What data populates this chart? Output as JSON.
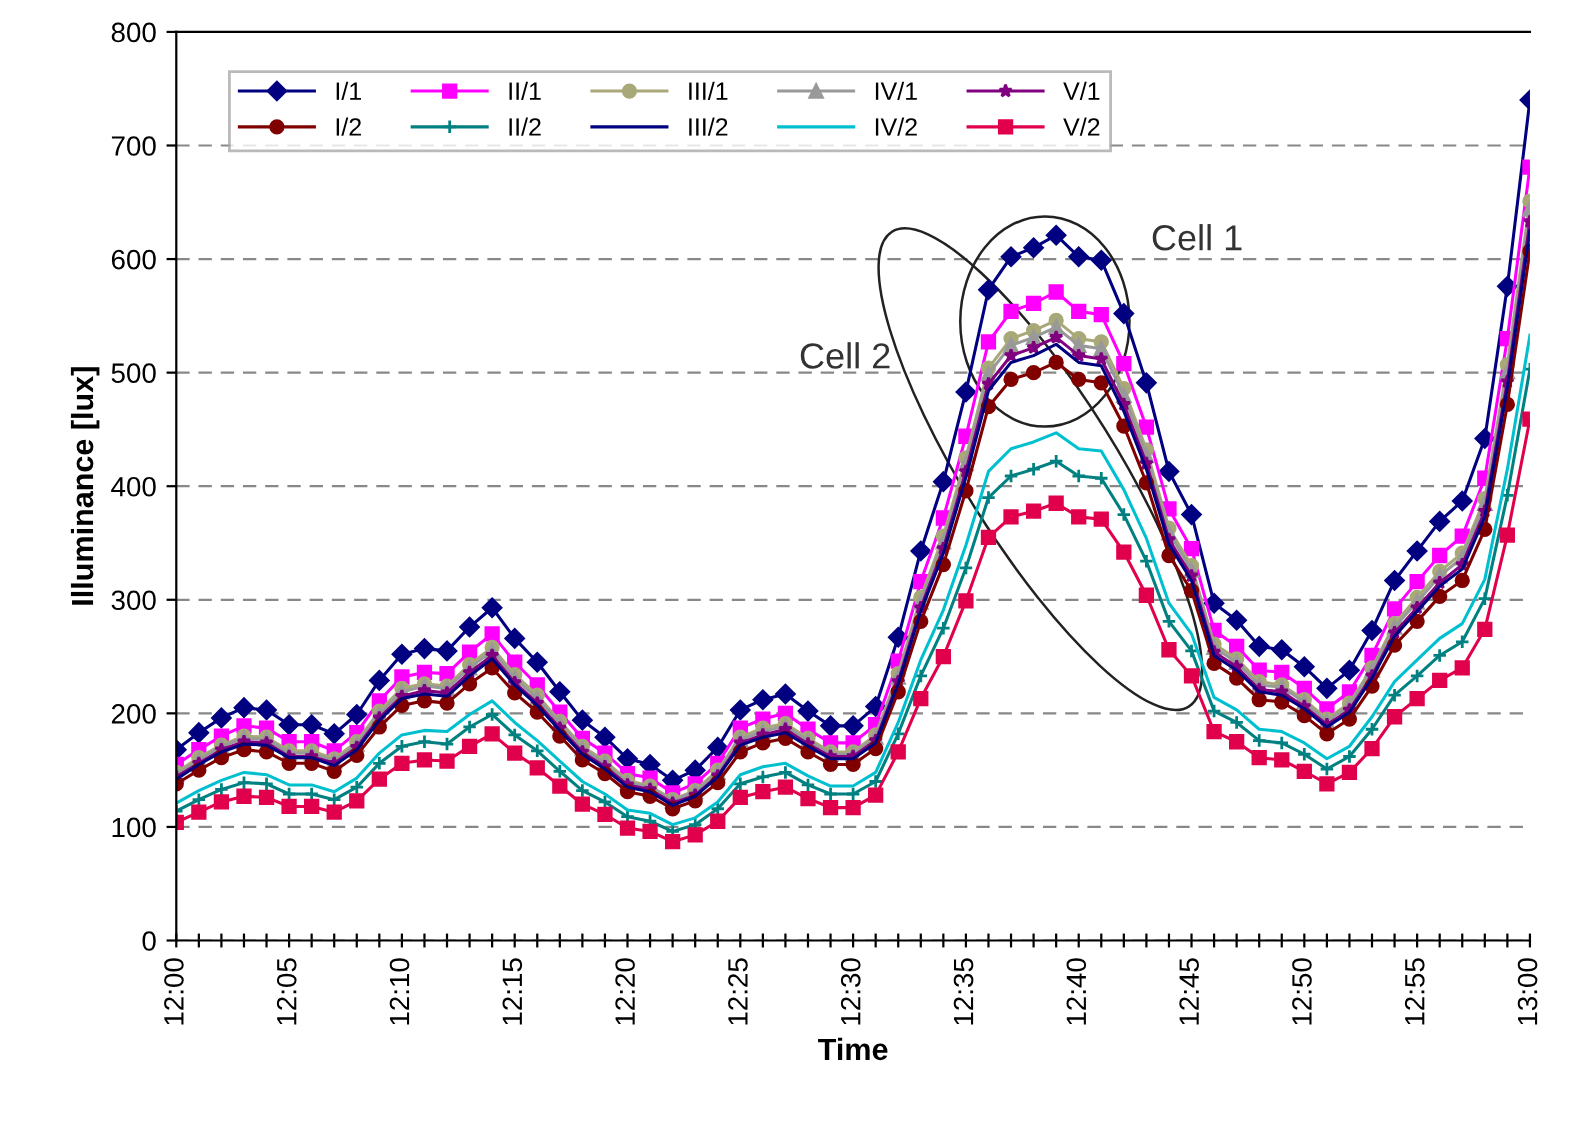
{
  "chart_data": {
    "type": "line",
    "xlabel": "Time",
    "ylabel": "Illuminance [lux]",
    "categories": [
      "12:00",
      null,
      null,
      null,
      null,
      "12:05",
      null,
      null,
      null,
      null,
      "12:10",
      null,
      null,
      null,
      null,
      "12:15",
      null,
      null,
      null,
      null,
      "12:20",
      null,
      null,
      null,
      null,
      "12:25",
      null,
      null,
      null,
      null,
      "12:30",
      null,
      null,
      null,
      null,
      "12:35",
      null,
      null,
      null,
      null,
      "12:40",
      null,
      null,
      null,
      null,
      "12:45",
      null,
      null,
      null,
      null,
      "12:50",
      null,
      null,
      null,
      null,
      "12:55",
      null,
      null,
      null,
      null,
      "13:00"
    ],
    "ylim": [
      0,
      800
    ],
    "yticks": [
      0,
      100,
      200,
      300,
      400,
      500,
      600,
      700,
      800
    ],
    "grid": "y",
    "legend": "top left",
    "line_style": "solid",
    "annotations": [
      "Cell 1",
      "Cell 2"
    ],
    "series": [
      {
        "name": "I/1",
        "color": "#000080",
        "marker": "diamond",
        "values": [
          168,
          183,
          196,
          205,
          203,
          190,
          190,
          182,
          199,
          229,
          252,
          257,
          255,
          276,
          293,
          266,
          245,
          219,
          194,
          179,
          160,
          155,
          141,
          150,
          170,
          203,
          212,
          217,
          202,
          189,
          189,
          206,
          267,
          343,
          404,
          483,
          573,
          602,
          610,
          621,
          602,
          599,
          552,
          491,
          413,
          375,
          297,
          282,
          259,
          256,
          241,
          222,
          238,
          273,
          317,
          343,
          369,
          387,
          442,
          576,
          740
        ]
      },
      {
        "name": "II/1",
        "color": "#ff00ff",
        "marker": "square",
        "values": [
          155,
          168,
          180,
          189,
          187,
          175,
          175,
          167,
          183,
          211,
          232,
          236,
          235,
          254,
          270,
          245,
          225,
          201,
          178,
          165,
          147,
          143,
          130,
          138,
          156,
          187,
          195,
          200,
          186,
          174,
          174,
          190,
          246,
          316,
          372,
          444,
          527,
          554,
          561,
          571,
          554,
          551,
          508,
          452,
          380,
          345,
          273,
          259,
          238,
          236,
          222,
          204,
          219,
          251,
          292,
          316,
          339,
          356,
          407,
          530,
          681
        ]
      },
      {
        "name": "III/1",
        "color": "#a8a878",
        "marker": "circle",
        "values": [
          148,
          161,
          172,
          180,
          179,
          167,
          167,
          160,
          175,
          202,
          222,
          226,
          224,
          243,
          258,
          234,
          216,
          193,
          171,
          158,
          141,
          136,
          124,
          132,
          150,
          179,
          187,
          191,
          178,
          166,
          166,
          181,
          235,
          302,
          356,
          425,
          504,
          530,
          537,
          546,
          530,
          527,
          486,
          432,
          363,
          330,
          261,
          248,
          228,
          225,
          212,
          195,
          209,
          240,
          279,
          302,
          325,
          341,
          389,
          507,
          651
        ]
      },
      {
        "name": "IV/1",
        "color": "#999999",
        "marker": "triangle",
        "values": [
          146,
          159,
          171,
          178,
          177,
          165,
          165,
          158,
          173,
          199,
          219,
          224,
          222,
          240,
          255,
          231,
          213,
          191,
          169,
          156,
          139,
          135,
          123,
          131,
          148,
          177,
          184,
          189,
          176,
          164,
          164,
          179,
          232,
          298,
          351,
          420,
          499,
          524,
          531,
          540,
          524,
          521,
          480,
          427,
          359,
          326,
          258,
          245,
          225,
          223,
          210,
          193,
          207,
          238,
          276,
          298,
          321,
          337,
          385,
          501,
          644
        ]
      },
      {
        "name": "V/1",
        "color": "#800080",
        "marker": "star",
        "values": [
          144,
          156,
          168,
          175,
          174,
          162,
          162,
          156,
          170,
          196,
          215,
          220,
          218,
          236,
          251,
          227,
          209,
          187,
          166,
          153,
          137,
          133,
          121,
          128,
          145,
          174,
          181,
          186,
          173,
          162,
          162,
          176,
          228,
          293,
          345,
          413,
          490,
          515,
          522,
          531,
          515,
          512,
          472,
          420,
          353,
          321,
          254,
          241,
          221,
          219,
          206,
          190,
          203,
          233,
          271,
          293,
          315,
          331,
          378,
          492,
          633
        ]
      },
      {
        "name": "I/2",
        "color": "#800000",
        "marker": "circle",
        "values": [
          138,
          150,
          161,
          168,
          166,
          156,
          156,
          149,
          163,
          188,
          207,
          211,
          209,
          226,
          240,
          218,
          201,
          180,
          159,
          147,
          131,
          127,
          116,
          123,
          139,
          166,
          174,
          178,
          166,
          155,
          155,
          169,
          219,
          281,
          331,
          396,
          470,
          494,
          500,
          509,
          494,
          491,
          453,
          403,
          339,
          308,
          244,
          231,
          212,
          210,
          198,
          182,
          195,
          224,
          260,
          281,
          303,
          317,
          362,
          472,
          607
        ]
      },
      {
        "name": "II/2",
        "color": "#008080",
        "marker": "cross",
        "values": [
          114,
          124,
          133,
          139,
          138,
          129,
          129,
          124,
          135,
          156,
          171,
          175,
          173,
          188,
          199,
          181,
          167,
          149,
          132,
          122,
          109,
          105,
          96,
          102,
          116,
          138,
          144,
          148,
          137,
          129,
          129,
          140,
          182,
          233,
          275,
          328,
          390,
          409,
          415,
          422,
          409,
          407,
          375,
          334,
          281,
          255,
          202,
          192,
          176,
          174,
          164,
          151,
          162,
          186,
          216,
          233,
          251,
          263,
          301,
          392,
          503
        ]
      },
      {
        "name": "III/2",
        "color": "#000080",
        "marker": "none",
        "values": [
          142,
          155,
          166,
          173,
          172,
          161,
          161,
          154,
          168,
          194,
          213,
          217,
          215,
          233,
          248,
          225,
          207,
          185,
          164,
          151,
          135,
          131,
          119,
          127,
          144,
          172,
          179,
          183,
          171,
          160,
          160,
          174,
          226,
          290,
          341,
          408,
          484,
          509,
          515,
          525,
          509,
          506,
          466,
          415,
          349,
          317,
          251,
          238,
          219,
          216,
          204,
          188,
          201,
          231,
          268,
          290,
          312,
          327,
          373,
          487,
          625
        ]
      },
      {
        "name": "IV/2",
        "color": "#00c0d0",
        "marker": "none",
        "values": [
          121,
          132,
          141,
          148,
          146,
          137,
          137,
          131,
          143,
          165,
          181,
          185,
          184,
          199,
          211,
          192,
          176,
          158,
          140,
          129,
          115,
          112,
          102,
          108,
          122,
          146,
          153,
          156,
          145,
          136,
          136,
          148,
          192,
          247,
          291,
          348,
          413,
          433,
          439,
          447,
          433,
          431,
          397,
          354,
          297,
          270,
          214,
          203,
          186,
          184,
          174,
          160,
          171,
          197,
          228,
          247,
          266,
          279,
          318,
          415,
          533
        ]
      },
      {
        "name": "V/2",
        "color": "#e0004b",
        "marker": "square",
        "values": [
          104,
          113,
          122,
          127,
          126,
          118,
          118,
          113,
          123,
          142,
          156,
          159,
          158,
          171,
          182,
          165,
          152,
          136,
          120,
          111,
          99,
          96,
          87,
          93,
          105,
          126,
          131,
          135,
          125,
          117,
          117,
          128,
          166,
          213,
          250,
          299,
          355,
          373,
          378,
          385,
          373,
          371,
          342,
          304,
          256,
          233,
          184,
          175,
          161,
          159,
          149,
          138,
          148,
          169,
          197,
          213,
          229,
          240,
          274,
          357,
          459
        ]
      }
    ]
  }
}
